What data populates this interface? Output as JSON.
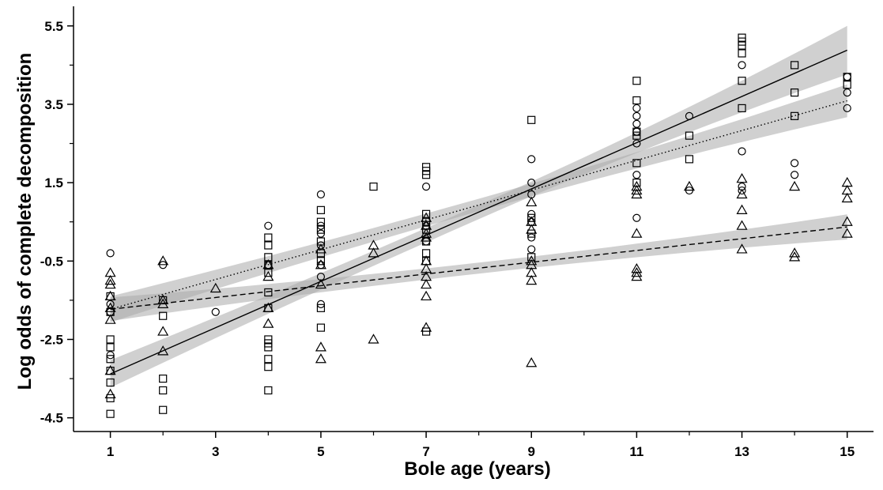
{
  "chart_data": {
    "type": "scatter",
    "title": "",
    "xlabel": "Bole age (years)",
    "ylabel": "Log odds of complete decomposition",
    "xlim": [
      0.3,
      15.5
    ],
    "ylim": [
      -4.85,
      6.0
    ],
    "x_ticks_labeled": [
      1,
      3,
      5,
      7,
      9,
      11,
      13,
      15
    ],
    "x_ticks_minor": [
      2,
      4,
      6,
      8,
      10,
      12,
      14
    ],
    "y_ticks_labeled": [
      -4.5,
      -2.5,
      -0.5,
      1.5,
      3.5,
      5.5
    ],
    "y_ticks_minor": [
      -3.5,
      -1.5,
      0.5,
      2.5,
      4.5
    ],
    "x_tick_text": [
      "1",
      "3",
      "5",
      "7",
      "9",
      "11",
      "13",
      "15"
    ],
    "y_tick_text": [
      "-4.5",
      "-2.5",
      "-0.5",
      "1.5",
      "3.5",
      "5.5"
    ],
    "grid": false,
    "legend": false,
    "series": [
      {
        "marker": "square",
        "line_style": "solid",
        "fit": {
          "slope": 0.59,
          "intercept": -3.97
        },
        "band_halfwidth": [
          0.35,
          0.18,
          0.62
        ],
        "points": [
          [
            1,
            -4.4
          ],
          [
            1,
            -4.0
          ],
          [
            1,
            -3.6
          ],
          [
            1,
            -3.3
          ],
          [
            1,
            -3.0
          ],
          [
            1,
            -2.7
          ],
          [
            1,
            -2.5
          ],
          [
            1,
            -1.8
          ],
          [
            1,
            -1.4
          ],
          [
            2,
            -4.3
          ],
          [
            2,
            -3.8
          ],
          [
            2,
            -3.5
          ],
          [
            2,
            -1.9
          ],
          [
            2,
            -1.5
          ],
          [
            4,
            -3.8
          ],
          [
            4,
            -3.2
          ],
          [
            4,
            -3.0
          ],
          [
            4,
            -2.7
          ],
          [
            4,
            -2.6
          ],
          [
            4,
            -2.5
          ],
          [
            4,
            -1.7
          ],
          [
            4,
            -1.3
          ],
          [
            4,
            -0.8
          ],
          [
            4,
            -0.6
          ],
          [
            4,
            -0.4
          ],
          [
            4,
            -0.1
          ],
          [
            4,
            0.1
          ],
          [
            5,
            -2.2
          ],
          [
            5,
            -1.7
          ],
          [
            5,
            -0.5
          ],
          [
            5,
            -0.3
          ],
          [
            5,
            0.0
          ],
          [
            5,
            0.3
          ],
          [
            5,
            0.5
          ],
          [
            5,
            0.8
          ],
          [
            6,
            1.4
          ],
          [
            7,
            -2.3
          ],
          [
            7,
            -0.5
          ],
          [
            7,
            -0.3
          ],
          [
            7,
            0.0
          ],
          [
            7,
            0.3
          ],
          [
            7,
            0.5
          ],
          [
            7,
            0.7
          ],
          [
            7,
            1.7
          ],
          [
            7,
            1.8
          ],
          [
            7,
            1.9
          ],
          [
            9,
            -0.4
          ],
          [
            9,
            0.2
          ],
          [
            9,
            0.6
          ],
          [
            9,
            3.1
          ],
          [
            11,
            1.5
          ],
          [
            11,
            2.0
          ],
          [
            11,
            2.7
          ],
          [
            11,
            2.8
          ],
          [
            11,
            3.6
          ],
          [
            11,
            4.1
          ],
          [
            12,
            2.7
          ],
          [
            12,
            2.1
          ],
          [
            13,
            3.4
          ],
          [
            13,
            4.1
          ],
          [
            13,
            4.8
          ],
          [
            13,
            5.0
          ],
          [
            13,
            5.1
          ],
          [
            13,
            5.2
          ],
          [
            14,
            3.2
          ],
          [
            14,
            3.8
          ],
          [
            14,
            4.5
          ],
          [
            15,
            4.0
          ],
          [
            15,
            4.2
          ]
        ]
      },
      {
        "marker": "circle",
        "line_style": "dotted",
        "fit": {
          "slope": 0.38,
          "intercept": -2.11
        },
        "band_halfwidth": [
          0.33,
          0.16,
          0.42
        ],
        "points": [
          [
            1,
            -0.3
          ],
          [
            1,
            -1.6
          ],
          [
            1,
            -2.9
          ],
          [
            1,
            -1.8
          ],
          [
            2,
            -0.6
          ],
          [
            3,
            -1.8
          ],
          [
            4,
            0.4
          ],
          [
            4,
            -0.6
          ],
          [
            5,
            1.2
          ],
          [
            5,
            0.4
          ],
          [
            5,
            0.2
          ],
          [
            5,
            -0.1
          ],
          [
            5,
            -0.6
          ],
          [
            5,
            -0.9
          ],
          [
            5,
            -1.6
          ],
          [
            7,
            1.4
          ],
          [
            7,
            0.4
          ],
          [
            7,
            0.0
          ],
          [
            9,
            2.1
          ],
          [
            9,
            1.5
          ],
          [
            9,
            1.2
          ],
          [
            9,
            0.7
          ],
          [
            9,
            0.5
          ],
          [
            9,
            0.1
          ],
          [
            9,
            -0.2
          ],
          [
            11,
            3.4
          ],
          [
            11,
            3.2
          ],
          [
            11,
            3.0
          ],
          [
            11,
            2.8
          ],
          [
            11,
            2.5
          ],
          [
            11,
            1.7
          ],
          [
            11,
            0.6
          ],
          [
            12,
            3.2
          ],
          [
            12,
            1.3
          ],
          [
            13,
            4.5
          ],
          [
            13,
            2.3
          ],
          [
            13,
            1.4
          ],
          [
            13,
            1.3
          ],
          [
            14,
            2.0
          ],
          [
            14,
            1.7
          ],
          [
            15,
            4.2
          ],
          [
            15,
            3.8
          ],
          [
            15,
            3.4
          ]
        ]
      },
      {
        "marker": "triangle",
        "line_style": "dashed",
        "fit": {
          "slope": 0.15,
          "intercept": -1.88
        },
        "band_halfwidth": [
          0.3,
          0.14,
          0.32
        ],
        "points": [
          [
            1,
            -0.8
          ],
          [
            1,
            -1.0
          ],
          [
            1,
            -1.1
          ],
          [
            1,
            -1.4
          ],
          [
            1,
            -1.7
          ],
          [
            1,
            -2.0
          ],
          [
            1,
            -3.3
          ],
          [
            1,
            -3.9
          ],
          [
            2,
            -0.5
          ],
          [
            2,
            -1.5
          ],
          [
            2,
            -1.6
          ],
          [
            2,
            -2.3
          ],
          [
            2,
            -2.8
          ],
          [
            3,
            -1.2
          ],
          [
            4,
            -0.6
          ],
          [
            4,
            -0.9
          ],
          [
            4,
            -1.7
          ],
          [
            4,
            -2.1
          ],
          [
            5,
            -0.2
          ],
          [
            5,
            -0.6
          ],
          [
            5,
            -1.1
          ],
          [
            5,
            -2.7
          ],
          [
            5,
            -3.0
          ],
          [
            6,
            -2.5
          ],
          [
            6,
            -0.1
          ],
          [
            6,
            -0.3
          ],
          [
            7,
            0.6
          ],
          [
            7,
            0.4
          ],
          [
            7,
            0.2
          ],
          [
            7,
            0.1
          ],
          [
            7,
            -0.5
          ],
          [
            7,
            -0.7
          ],
          [
            7,
            -0.9
          ],
          [
            7,
            -1.1
          ],
          [
            7,
            -1.4
          ],
          [
            7,
            -2.2
          ],
          [
            9,
            1.0
          ],
          [
            9,
            0.5
          ],
          [
            9,
            0.3
          ],
          [
            9,
            -0.5
          ],
          [
            9,
            -0.6
          ],
          [
            9,
            -0.8
          ],
          [
            9,
            -1.0
          ],
          [
            9,
            -3.1
          ],
          [
            11,
            1.4
          ],
          [
            11,
            1.3
          ],
          [
            11,
            1.2
          ],
          [
            11,
            0.2
          ],
          [
            11,
            -0.7
          ],
          [
            11,
            -0.8
          ],
          [
            11,
            -0.9
          ],
          [
            12,
            1.4
          ],
          [
            13,
            1.6
          ],
          [
            13,
            1.2
          ],
          [
            13,
            0.8
          ],
          [
            13,
            0.4
          ],
          [
            13,
            -0.2
          ],
          [
            14,
            1.4
          ],
          [
            14,
            -0.3
          ],
          [
            14,
            -0.4
          ],
          [
            15,
            1.5
          ],
          [
            15,
            1.3
          ],
          [
            15,
            1.1
          ],
          [
            15,
            0.5
          ],
          [
            15,
            0.2
          ]
        ]
      }
    ]
  }
}
